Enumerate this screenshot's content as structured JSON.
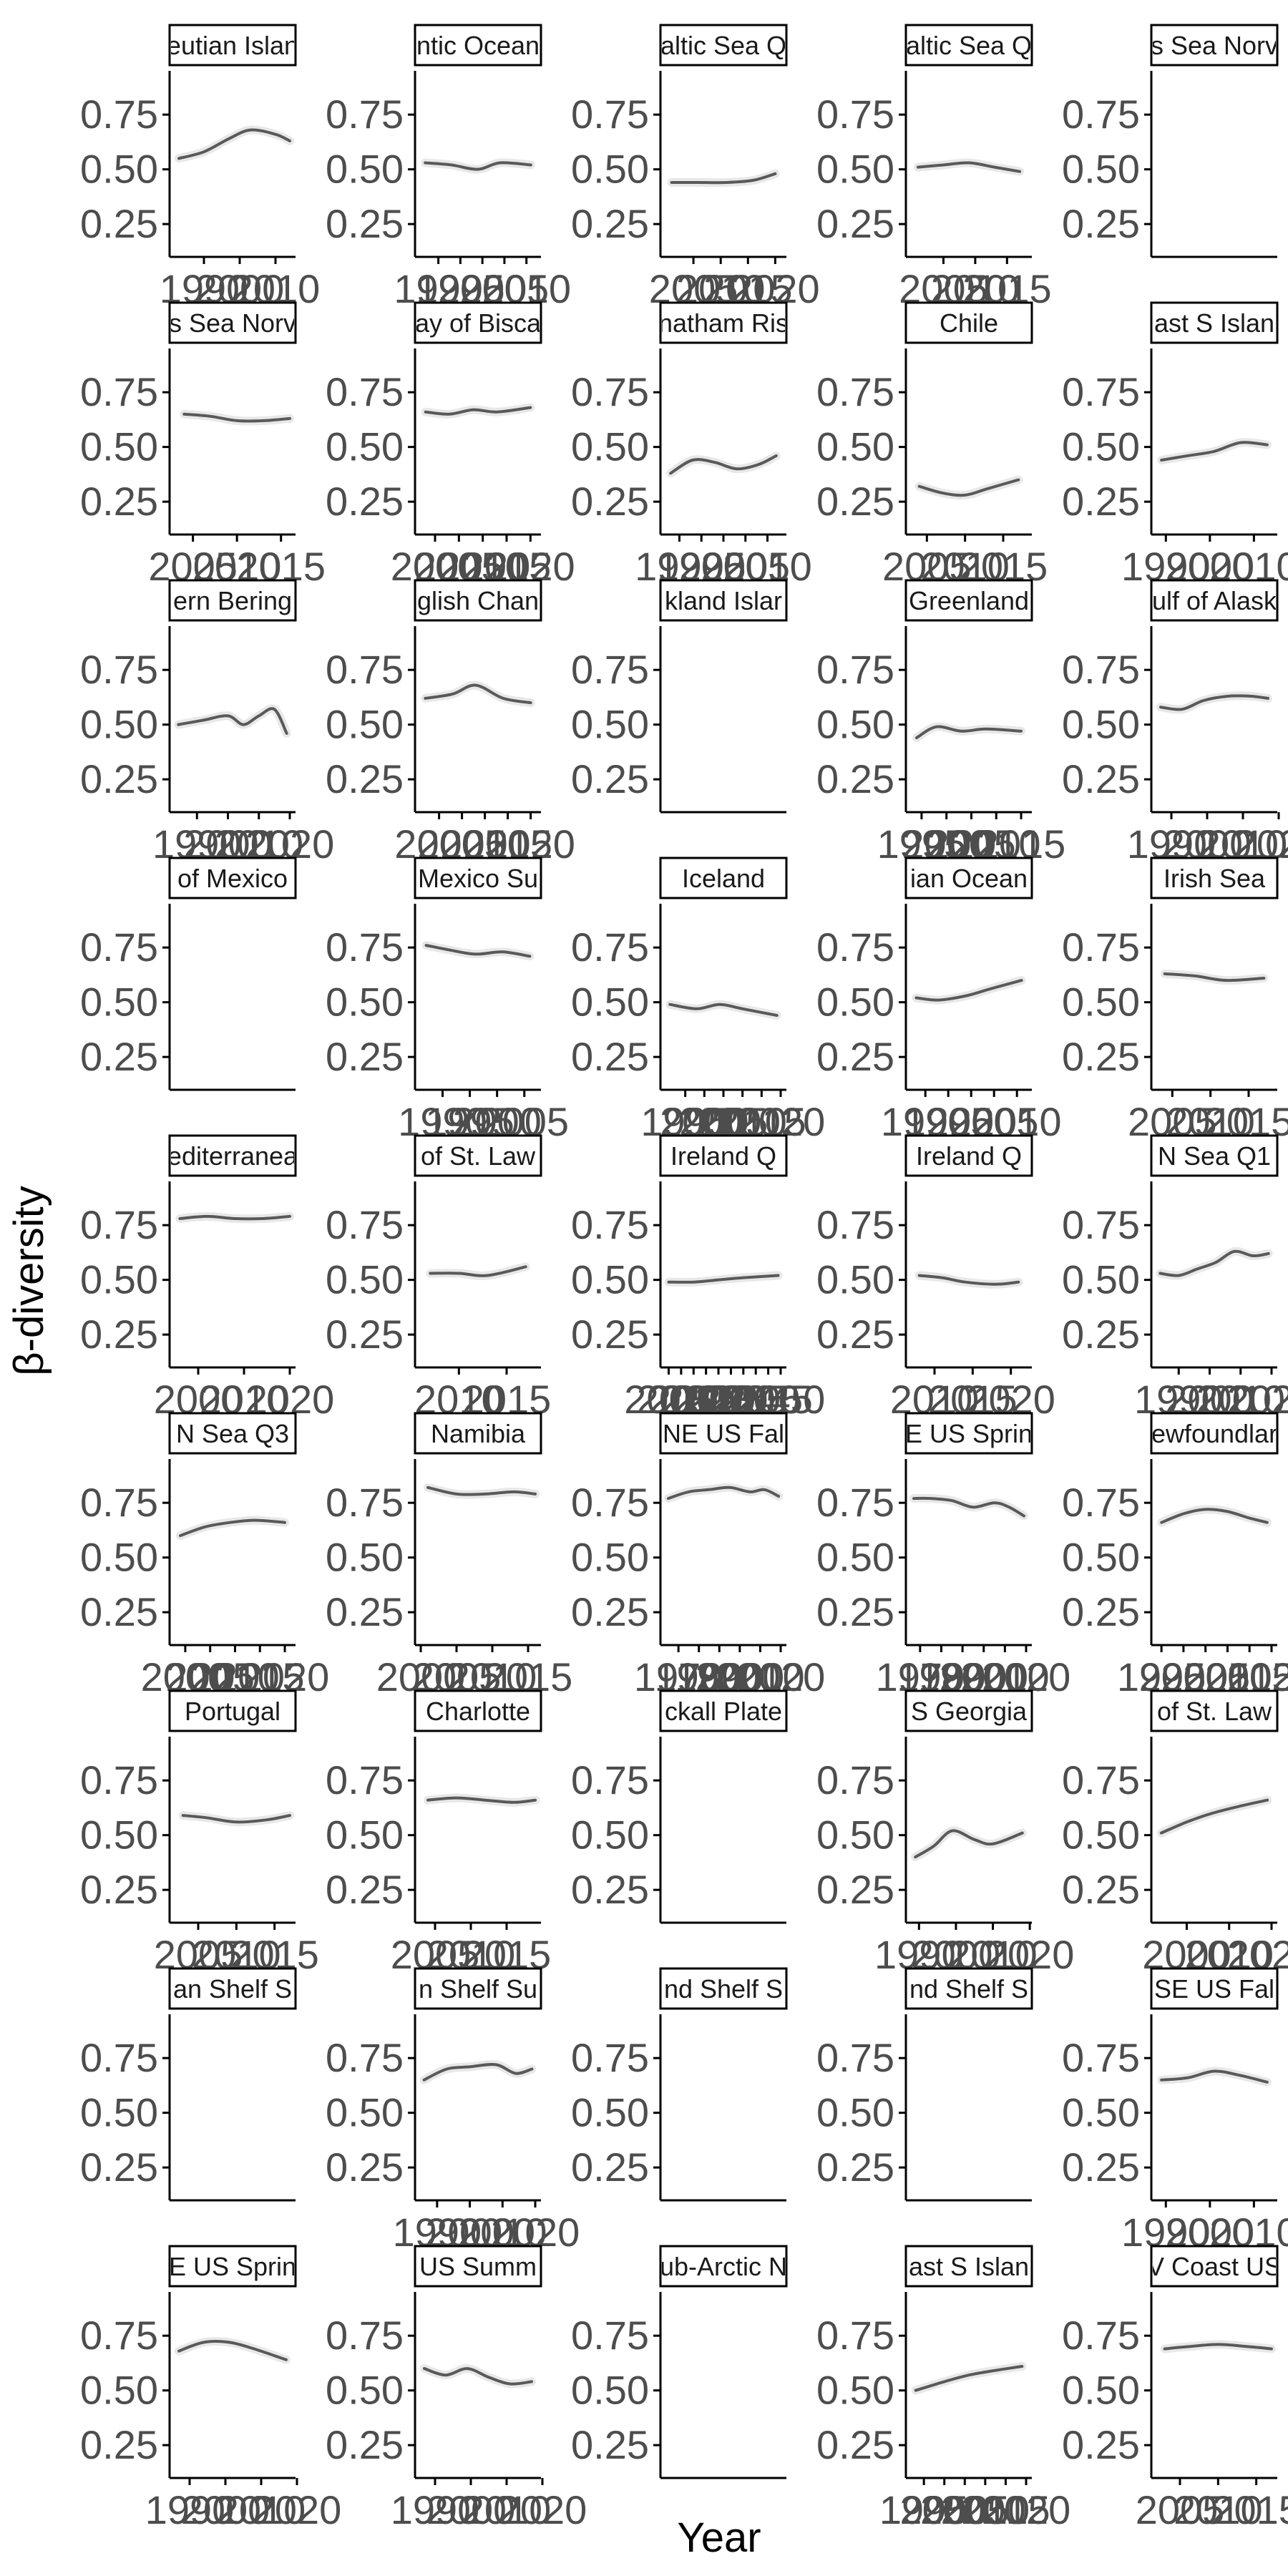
{
  "chart_data": {
    "type": "line",
    "layout": "facet-grid",
    "xlabel": "Year",
    "ylabel": "β-diversity",
    "y_ticks": [
      "0.25",
      "0.50",
      "0.75"
    ],
    "ylim": [
      0.1,
      0.95
    ],
    "grid": false,
    "colors": {
      "line": "#595959",
      "ribbon": "#d9d9d9",
      "axis": "#000000",
      "tick_text": "#4d4d4d",
      "strip_border": "#000000",
      "strip_fill": "#ffffff"
    },
    "panels": [
      {
        "strip": "eutian Islan",
        "xticks": [
          "1990",
          "2000",
          "2010"
        ],
        "xlim": [
          1982,
          2014
        ],
        "x": [
          1983,
          1990,
          1997,
          2003,
          2010,
          2014
        ],
        "y": [
          0.55,
          0.58,
          0.64,
          0.68,
          0.66,
          0.63
        ]
      },
      {
        "strip": "ntic Ocean",
        "xticks": [
          "1990",
          "1995",
          "2000",
          "2005",
          "2010"
        ],
        "xlim": [
          1986,
          2012
        ],
        "x": [
          1987,
          1993,
          1999,
          2004,
          2011
        ],
        "y": [
          0.53,
          0.52,
          0.5,
          0.53,
          0.52
        ]
      },
      {
        "strip": "altic Sea Q",
        "xticks": [
          "2005",
          "2010",
          "2015",
          "2020"
        ],
        "xlim": [
          2000,
          2021
        ],
        "x": [
          2001,
          2006,
          2011,
          2016,
          2020
        ],
        "y": [
          0.44,
          0.44,
          0.44,
          0.45,
          0.48
        ]
      },
      {
        "strip": "altic Sea Q",
        "xticks": [
          "2005",
          "2010",
          "2015"
        ],
        "xlim": [
          2000,
          2018
        ],
        "x": [
          2001,
          2005,
          2009,
          2013,
          2017
        ],
        "y": [
          0.51,
          0.52,
          0.53,
          0.51,
          0.49
        ]
      },
      {
        "strip": "s Sea Norv",
        "xticks": [],
        "x": [],
        "y": []
      },
      {
        "strip": "s Sea Norv",
        "xticks": [
          "2005",
          "2010",
          "2015"
        ],
        "xlim": [
          2003,
          2016
        ],
        "x": [
          2004,
          2007,
          2010,
          2013,
          2016
        ],
        "y": [
          0.65,
          0.64,
          0.62,
          0.62,
          0.63
        ]
      },
      {
        "strip": "ay of Bisca",
        "xticks": [
          "2000",
          "2005",
          "2010",
          "2015",
          "2020"
        ],
        "xlim": [
          1997,
          2021
        ],
        "x": [
          1998,
          2003,
          2008,
          2013,
          2020
        ],
        "y": [
          0.66,
          0.65,
          0.67,
          0.66,
          0.68
        ]
      },
      {
        "strip": "natham Ris",
        "xticks": [
          "1990",
          "1995",
          "2000",
          "2005",
          "2010"
        ],
        "xlim": [
          1987,
          2013
        ],
        "x": [
          1988,
          1993,
          1998,
          2003,
          2008,
          2012
        ],
        "y": [
          0.38,
          0.44,
          0.43,
          0.4,
          0.42,
          0.46
        ]
      },
      {
        "strip": "Chile",
        "xticks": [
          "2005",
          "2010",
          "2015"
        ],
        "xlim": [
          2003,
          2018
        ],
        "x": [
          2004,
          2007,
          2010,
          2013,
          2017
        ],
        "y": [
          0.32,
          0.29,
          0.28,
          0.31,
          0.35
        ]
      },
      {
        "strip": "ast S Islan",
        "xticks": [
          "1990",
          "2000",
          "2010"
        ],
        "xlim": [
          1988,
          2014
        ],
        "x": [
          1989,
          1995,
          2001,
          2007,
          2013
        ],
        "y": [
          0.44,
          0.46,
          0.48,
          0.52,
          0.51
        ]
      },
      {
        "strip": "ern Bering",
        "xticks": [
          "1990",
          "2000",
          "2010",
          "2020"
        ],
        "xlim": [
          1983,
          2020
        ],
        "x": [
          1984,
          1992,
          2000,
          2005,
          2010,
          2015,
          2019
        ],
        "y": [
          0.5,
          0.52,
          0.54,
          0.5,
          0.54,
          0.57,
          0.46
        ]
      },
      {
        "strip": "glish Chan",
        "xticks": [
          "2000",
          "2005",
          "2010",
          "2015",
          "2020"
        ],
        "xlim": [
          1996,
          2021
        ],
        "x": [
          1997,
          2003,
          2008,
          2014,
          2020
        ],
        "y": [
          0.62,
          0.64,
          0.68,
          0.62,
          0.6
        ]
      },
      {
        "strip": "kland Islar",
        "xticks": [],
        "x": [],
        "y": []
      },
      {
        "strip": "Greenland",
        "xticks": [
          "1995",
          "2000",
          "2005",
          "2010",
          "2015"
        ],
        "xlim": [
          1993,
          2016
        ],
        "x": [
          1994,
          1998,
          2003,
          2008,
          2015
        ],
        "y": [
          0.44,
          0.49,
          0.47,
          0.48,
          0.47
        ]
      },
      {
        "strip": "ulf of Alask",
        "xticks": [
          "1990",
          "2000",
          "2010",
          "2020"
        ],
        "xlim": [
          1986,
          2018
        ],
        "x": [
          1987,
          1993,
          1999,
          2006,
          2012,
          2017
        ],
        "y": [
          0.58,
          0.57,
          0.61,
          0.63,
          0.63,
          0.62
        ]
      },
      {
        "strip": "of Mexico",
        "xticks": [],
        "x": [],
        "y": []
      },
      {
        "strip": "Mexico Su",
        "xticks": [
          "1990",
          "1995",
          "2000",
          "2005"
        ],
        "xlim": [
          1986,
          2007
        ],
        "x": [
          1987,
          1991,
          1996,
          2001,
          2006
        ],
        "y": [
          0.76,
          0.74,
          0.72,
          0.73,
          0.71
        ]
      },
      {
        "strip": "Iceland",
        "xticks": [
          "1995",
          "2000",
          "2005",
          "2010",
          "2015",
          "2020"
        ],
        "xlim": [
          1990,
          2020
        ],
        "x": [
          1991,
          1998,
          2004,
          2010,
          2019
        ],
        "y": [
          0.49,
          0.47,
          0.49,
          0.47,
          0.44
        ]
      },
      {
        "strip": "ian Ocean",
        "xticks": [
          "1990",
          "1995",
          "2000",
          "2005",
          "2010"
        ],
        "xlim": [
          1987,
          2012
        ],
        "x": [
          1988,
          1993,
          1999,
          2004,
          2011
        ],
        "y": [
          0.52,
          0.51,
          0.53,
          0.56,
          0.6
        ]
      },
      {
        "strip": "Irish Sea",
        "xticks": [
          "2005",
          "2010",
          "2015"
        ],
        "xlim": [
          2003,
          2018
        ],
        "x": [
          2004,
          2008,
          2012,
          2017
        ],
        "y": [
          0.63,
          0.62,
          0.6,
          0.61
        ]
      },
      {
        "strip": "editerranea",
        "xticks": [
          "2000",
          "2010",
          "2020"
        ],
        "xlim": [
          1995,
          2020
        ],
        "x": [
          1996,
          2002,
          2008,
          2014,
          2020
        ],
        "y": [
          0.78,
          0.79,
          0.78,
          0.78,
          0.79
        ]
      },
      {
        "strip": "of St. Law",
        "xticks": [
          "2010",
          "2015"
        ],
        "xlim": [
          2006,
          2018
        ],
        "x": [
          2007,
          2010,
          2013,
          2017
        ],
        "y": [
          0.53,
          0.53,
          0.52,
          0.56
        ]
      },
      {
        "strip": "Ireland Q",
        "xticks": [
          "2005",
          "2010",
          "2015",
          "2020",
          "2025",
          "2030",
          "2035",
          "2040",
          "2045",
          "2050"
        ],
        "xlim": [
          2004,
          2050
        ],
        "x": [
          2005,
          2015,
          2025,
          2035,
          2049
        ],
        "y": [
          0.49,
          0.49,
          0.5,
          0.51,
          0.52
        ]
      },
      {
        "strip": "Ireland Q",
        "xticks": [
          "2010",
          "2015",
          "2020"
        ],
        "xlim": [
          2007,
          2022
        ],
        "x": [
          2008,
          2011,
          2014,
          2018,
          2021
        ],
        "y": [
          0.52,
          0.51,
          0.49,
          0.48,
          0.49
        ]
      },
      {
        "strip": "N Sea Q1",
        "xticks": [
          "1990",
          "2000",
          "2010",
          "2020"
        ],
        "xlim": [
          1983,
          2020
        ],
        "x": [
          1984,
          1990,
          1996,
          2002,
          2008,
          2014,
          2019
        ],
        "y": [
          0.53,
          0.52,
          0.55,
          0.58,
          0.63,
          0.61,
          0.62
        ]
      },
      {
        "strip": "N Sea Q3",
        "xticks": [
          "2000",
          "2005",
          "2010",
          "2015",
          "2020"
        ],
        "xlim": [
          1998,
          2021
        ],
        "x": [
          1999,
          2004,
          2009,
          2014,
          2020
        ],
        "y": [
          0.6,
          0.64,
          0.66,
          0.67,
          0.66
        ]
      },
      {
        "strip": "Namibia",
        "xticks": [
          "2000",
          "2005",
          "2005",
          "2010",
          "2015"
        ],
        "xlim": [
          2000,
          2016
        ],
        "x": [
          2001,
          2005,
          2009,
          2013,
          2016
        ],
        "y": [
          0.82,
          0.79,
          0.79,
          0.8,
          0.79
        ]
      },
      {
        "strip": "NE US Fal",
        "xticks": [
          "1970",
          "1980",
          "1990",
          "2000",
          "2010",
          "2020"
        ],
        "xlim": [
          1964,
          2020
        ],
        "x": [
          1965,
          1975,
          1985,
          1995,
          2005,
          2012,
          2019
        ],
        "y": [
          0.77,
          0.8,
          0.81,
          0.82,
          0.8,
          0.81,
          0.78
        ]
      },
      {
        "strip": "E US Sprin",
        "xticks": [
          "1970",
          "1980",
          "1990",
          "2000",
          "2010",
          "2020"
        ],
        "xlim": [
          1966,
          2020
        ],
        "x": [
          1967,
          1975,
          1985,
          1995,
          2005,
          2012,
          2019
        ],
        "y": [
          0.77,
          0.77,
          0.76,
          0.73,
          0.75,
          0.73,
          0.69
        ]
      },
      {
        "strip": "ewfoundlar",
        "xticks": [
          "1995",
          "2000",
          "2005",
          "2010",
          "2015",
          "2020"
        ],
        "xlim": [
          1994,
          2020
        ],
        "x": [
          1995,
          2000,
          2005,
          2010,
          2015,
          2019
        ],
        "y": [
          0.66,
          0.7,
          0.72,
          0.71,
          0.68,
          0.66
        ]
      },
      {
        "strip": "Portugal",
        "xticks": [
          "2005",
          "2010",
          "2015"
        ],
        "xlim": [
          2002,
          2017
        ],
        "x": [
          2003,
          2006,
          2010,
          2014,
          2017
        ],
        "y": [
          0.59,
          0.58,
          0.56,
          0.57,
          0.59
        ]
      },
      {
        "strip": "Charlotte",
        "xticks": [
          "2005",
          "2010",
          "2015"
        ],
        "xlim": [
          2003,
          2019
        ],
        "x": [
          2004,
          2008,
          2012,
          2016,
          2019
        ],
        "y": [
          0.66,
          0.67,
          0.66,
          0.65,
          0.66
        ]
      },
      {
        "strip": "ckall Plate",
        "xticks": [],
        "x": [],
        "y": []
      },
      {
        "strip": "S Georgia",
        "xticks": [
          "1990",
          "2000",
          "2010",
          "2020"
        ],
        "xlim": [
          1988,
          2019
        ],
        "x": [
          1989,
          1994,
          1999,
          2005,
          2010,
          2018
        ],
        "y": [
          0.4,
          0.45,
          0.52,
          0.48,
          0.46,
          0.51
        ]
      },
      {
        "strip": "of St. Law",
        "xticks": [
          "2000",
          "2010",
          "2020"
        ],
        "xlim": [
          1993,
          2020
        ],
        "x": [
          1994,
          2000,
          2006,
          2012,
          2019
        ],
        "y": [
          0.51,
          0.56,
          0.6,
          0.63,
          0.66
        ]
      },
      {
        "strip": "an Shelf S",
        "xticks": [],
        "x": [],
        "y": []
      },
      {
        "strip": "n Shelf Su",
        "xticks": [
          "1990",
          "2000",
          "2010",
          "2020"
        ],
        "xlim": [
          1985,
          2020
        ],
        "x": [
          1986,
          1993,
          2000,
          2008,
          2014,
          2019
        ],
        "y": [
          0.65,
          0.7,
          0.71,
          0.72,
          0.68,
          0.7
        ]
      },
      {
        "strip": "nd Shelf S",
        "xticks": [],
        "x": [],
        "y": []
      },
      {
        "strip": "nd Shelf S",
        "xticks": [],
        "x": [],
        "y": []
      },
      {
        "strip": "SE US Fal",
        "xticks": [
          "1990",
          "2000",
          "2010"
        ],
        "xlim": [
          1988,
          2014
        ],
        "x": [
          1989,
          1995,
          2001,
          2007,
          2013
        ],
        "y": [
          0.65,
          0.66,
          0.69,
          0.67,
          0.64
        ]
      },
      {
        "strip": "E US Sprin",
        "xticks": [
          "1990",
          "2000",
          "2010",
          "2020"
        ],
        "xlim": [
          1986,
          2018
        ],
        "x": [
          1987,
          1994,
          2001,
          2008,
          2017
        ],
        "y": [
          0.68,
          0.72,
          0.72,
          0.69,
          0.64
        ]
      },
      {
        "strip": "US Summ",
        "xticks": [
          "1990",
          "2000",
          "2010",
          "2020"
        ],
        "xlim": [
          1986,
          2018
        ],
        "x": [
          1987,
          1993,
          1999,
          2005,
          2011,
          2017
        ],
        "y": [
          0.6,
          0.57,
          0.6,
          0.56,
          0.53,
          0.54
        ]
      },
      {
        "strip": "ub-Arctic N",
        "xticks": [],
        "x": [],
        "y": []
      },
      {
        "strip": "ast S Islan",
        "xticks": [
          "1995",
          "2000",
          "2005",
          "2010",
          "2015",
          "2020"
        ],
        "xlim": [
          1992,
          2020
        ],
        "x": [
          1993,
          2000,
          2006,
          2012,
          2019
        ],
        "y": [
          0.5,
          0.54,
          0.57,
          0.59,
          0.61
        ]
      },
      {
        "strip": "V Coast US",
        "xticks": [
          "2005",
          "2010",
          "2015"
        ],
        "xlim": [
          2002,
          2017
        ],
        "x": [
          2003,
          2006,
          2010,
          2014,
          2017
        ],
        "y": [
          0.69,
          0.7,
          0.71,
          0.7,
          0.69
        ]
      }
    ]
  }
}
